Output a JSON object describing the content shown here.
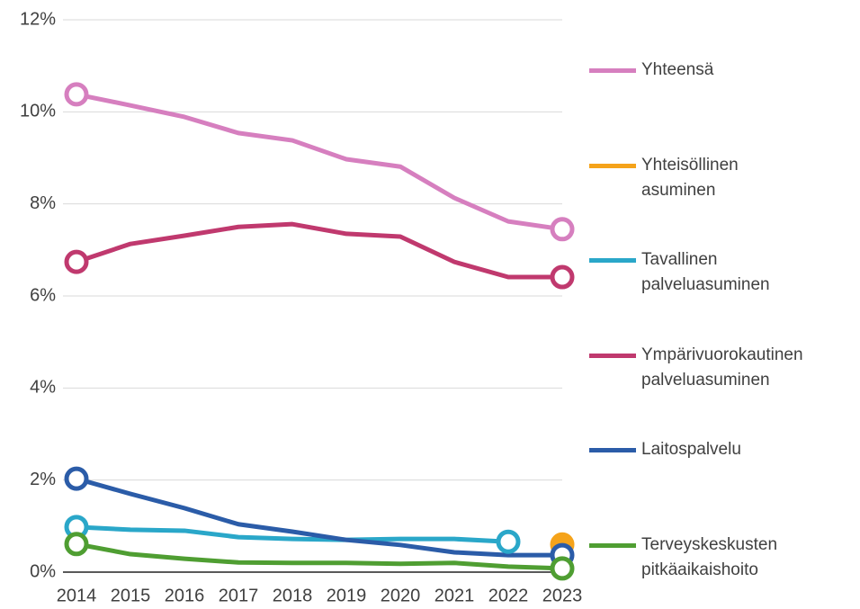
{
  "chart_data": {
    "type": "line",
    "categories": [
      "2014",
      "2015",
      "2016",
      "2017",
      "2018",
      "2019",
      "2020",
      "2021",
      "2022",
      "2023"
    ],
    "ylim": [
      0,
      12
    ],
    "yticks": [
      {
        "value": 0,
        "label": "0%"
      },
      {
        "value": 2,
        "label": "2%"
      },
      {
        "value": 4,
        "label": "4%"
      },
      {
        "value": 6,
        "label": "6%"
      },
      {
        "value": 8,
        "label": "8%"
      },
      {
        "value": 10,
        "label": "10%"
      },
      {
        "value": 12,
        "label": "12%"
      }
    ],
    "grid": true,
    "legend": "right",
    "series": [
      {
        "name": "Yhteensä",
        "color": "#d67fbf",
        "values": [
          10.38,
          10.14,
          9.89,
          9.54,
          9.38,
          8.97,
          8.81,
          8.13,
          7.62,
          7.45
        ]
      },
      {
        "name": "Yhteisöllinen asuminen",
        "color": "#f5a31a",
        "values": [
          null,
          null,
          null,
          null,
          null,
          null,
          null,
          null,
          null,
          0.6
        ]
      },
      {
        "name": "Tavallinen palveluasuminen",
        "color": "#2aa7c9",
        "values": [
          0.98,
          0.92,
          0.9,
          0.76,
          0.72,
          0.7,
          0.72,
          0.72,
          0.66,
          null
        ]
      },
      {
        "name": "Ympärivuorokautinen palveluasuminen",
        "color": "#c0396e",
        "values": [
          6.74,
          7.13,
          7.31,
          7.5,
          7.56,
          7.35,
          7.29,
          6.74,
          6.41,
          6.41
        ]
      },
      {
        "name": "Laitospalvelu",
        "color": "#2b5ca8",
        "values": [
          2.03,
          1.7,
          1.39,
          1.04,
          0.88,
          0.7,
          0.59,
          0.43,
          0.37,
          0.37
        ]
      },
      {
        "name": "Terveyskeskusten pitkäaikaishoito",
        "color": "#4f9e32",
        "values": [
          0.61,
          0.39,
          0.29,
          0.21,
          0.2,
          0.2,
          0.18,
          0.2,
          0.12,
          0.08
        ]
      }
    ]
  }
}
